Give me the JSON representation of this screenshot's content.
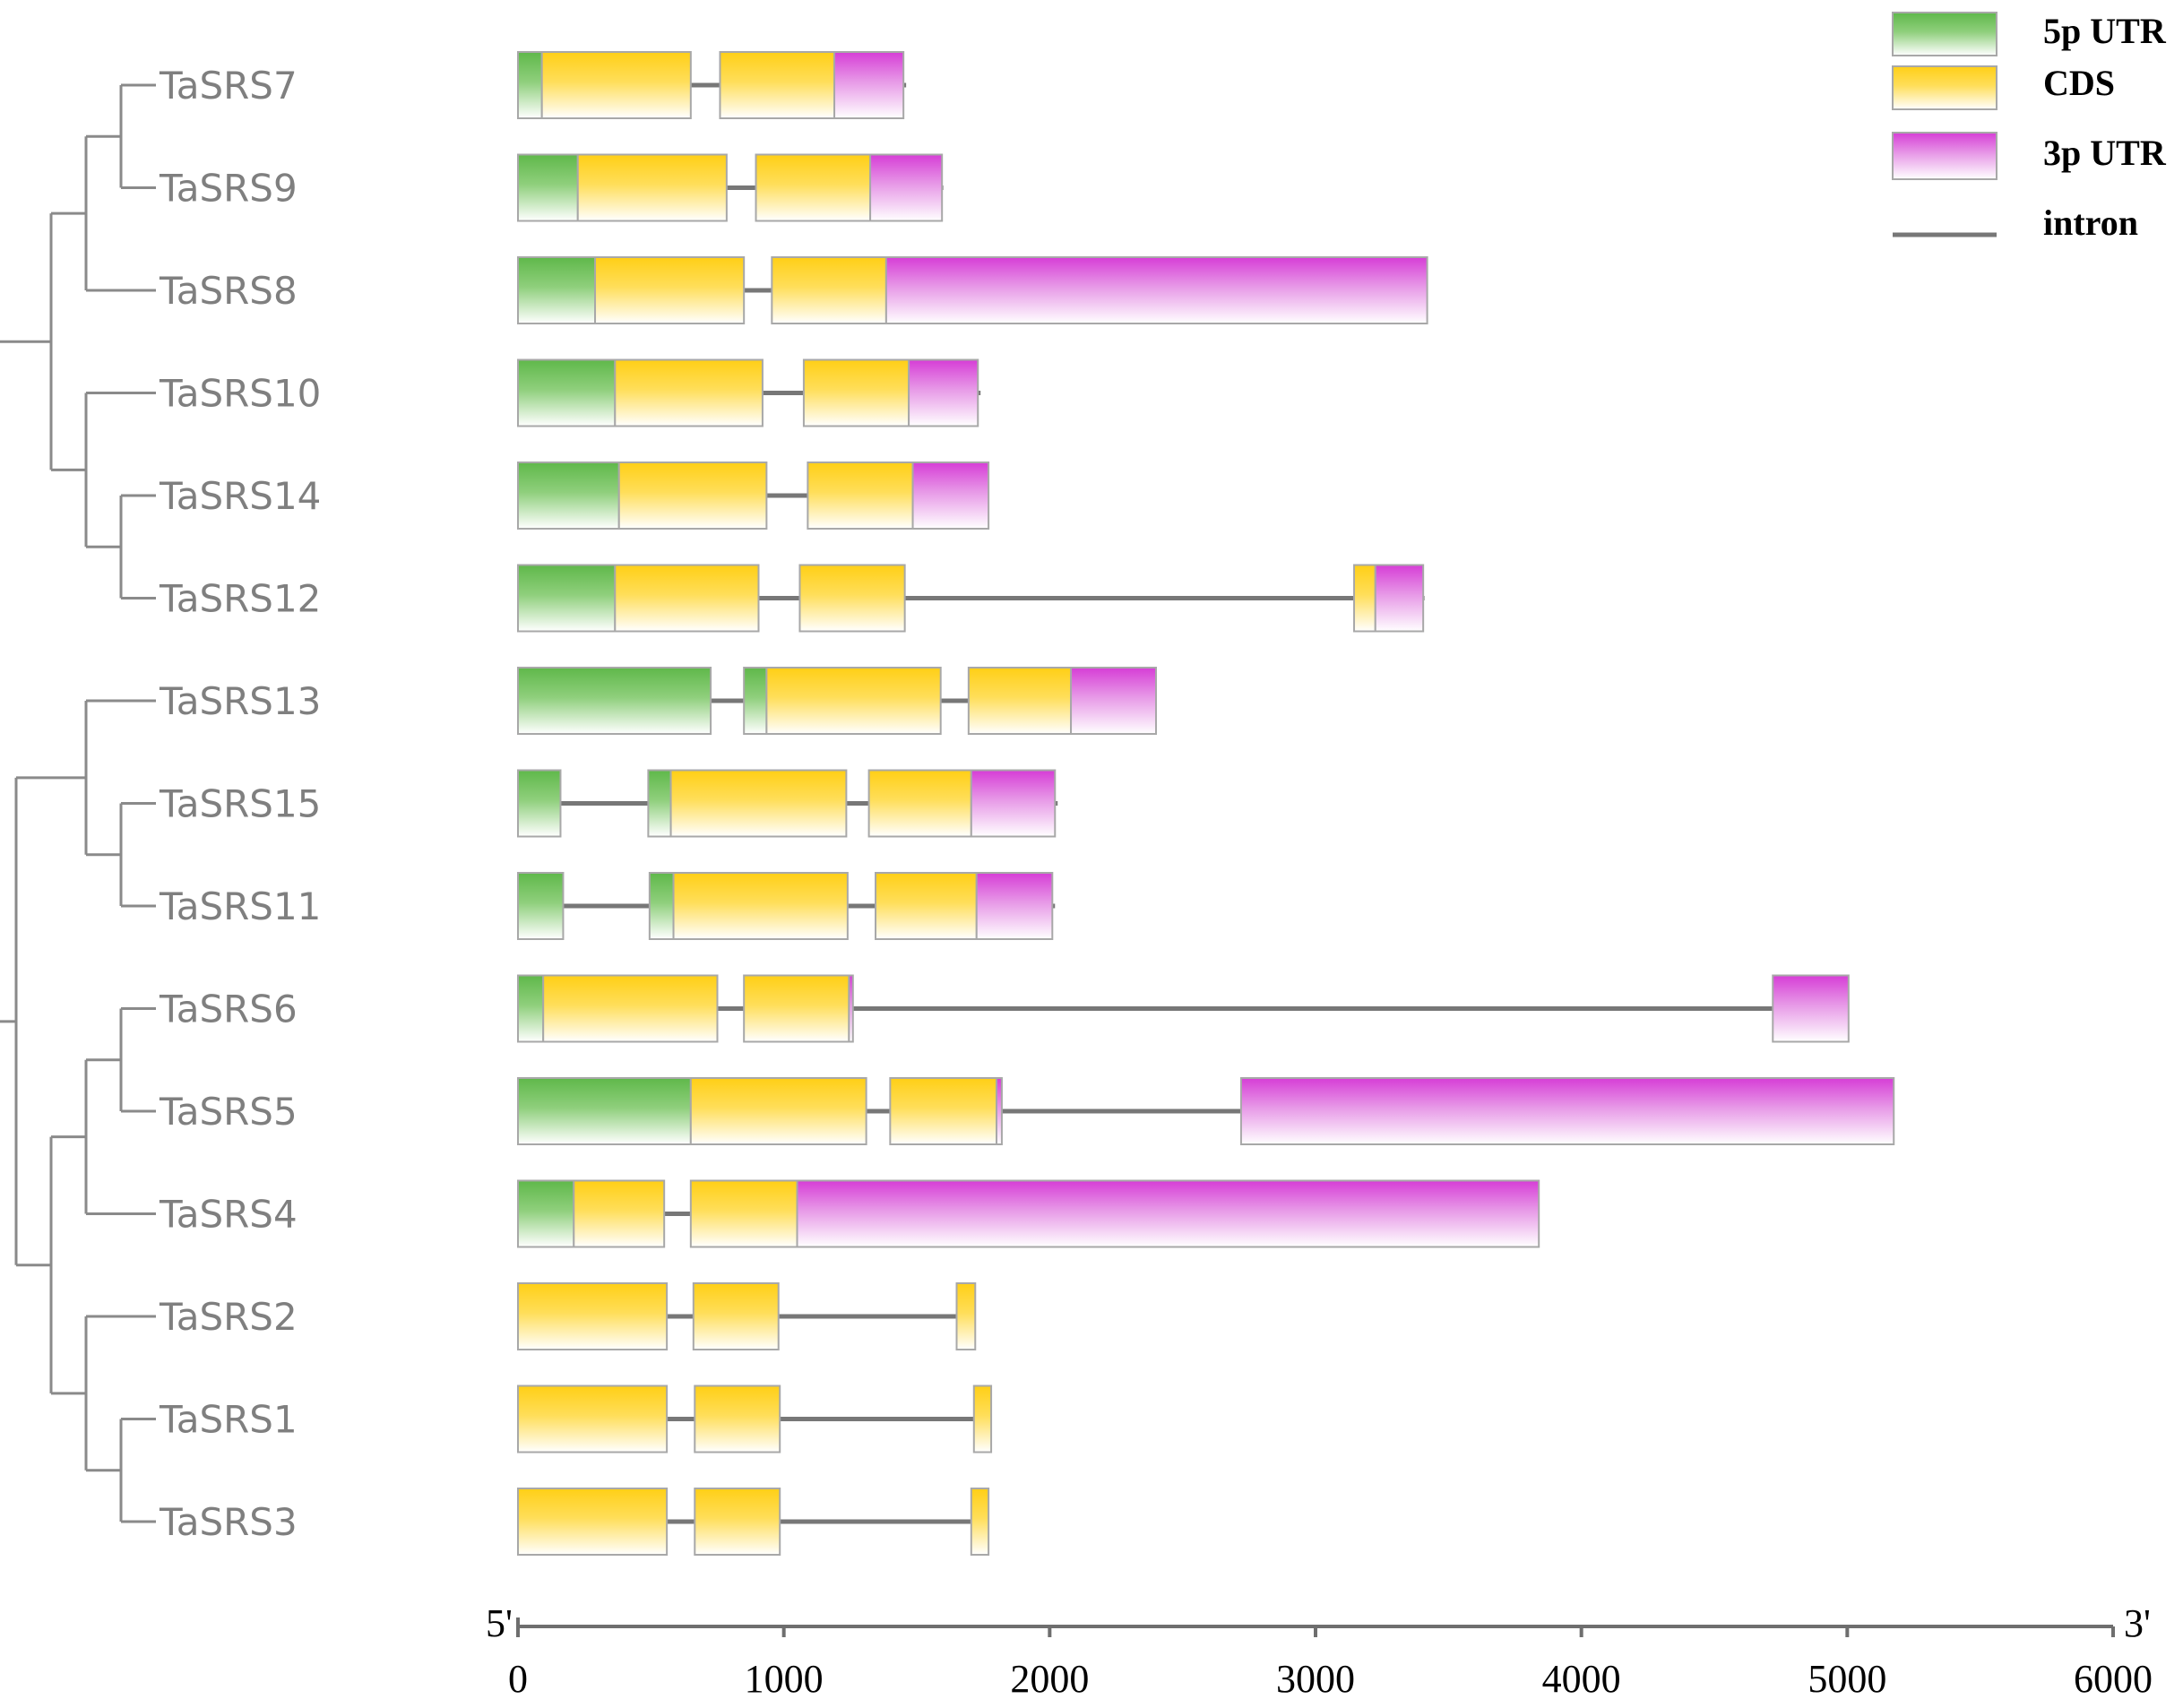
{
  "legend": {
    "items": [
      {
        "key": "utr5",
        "label": "5p UTR",
        "color": "#5fb84a"
      },
      {
        "key": "cds",
        "label": "CDS",
        "color": "#ffce1c"
      },
      {
        "key": "utr3",
        "label": "3p UTR",
        "color": "#d63dd6"
      },
      {
        "key": "intron",
        "label": "intron",
        "color": "#777777"
      }
    ]
  },
  "axis": {
    "min": 0,
    "max": 6000,
    "ticks": [
      "0",
      "1000",
      "2000",
      "3000",
      "4000",
      "5000",
      "6000"
    ],
    "tick_values": [
      0,
      1000,
      2000,
      3000,
      4000,
      5000,
      6000
    ],
    "start_label": "5'",
    "end_label": "3'"
  },
  "tree": {
    "root": {
      "children": [
        {
          "children": [
            {
              "children": [
                {
                  "children": [
                    {
                      "leaf": 0
                    },
                    {
                      "leaf": 1
                    }
                  ]
                },
                {
                  "leaf": 2
                }
              ]
            },
            {
              "children": [
                {
                  "leaf": 3
                },
                {
                  "children": [
                    {
                      "leaf": 4
                    },
                    {
                      "leaf": 5
                    }
                  ]
                }
              ]
            }
          ]
        },
        {
          "children": [
            {
              "children": [
                {
                  "leaf": 6
                },
                {
                  "children": [
                    {
                      "leaf": 7
                    },
                    {
                      "leaf": 8
                    }
                  ]
                }
              ]
            },
            {
              "children": [
                {
                  "children": [
                    {
                      "children": [
                        {
                          "leaf": 9
                        },
                        {
                          "leaf": 10
                        }
                      ]
                    },
                    {
                      "leaf": 11
                    }
                  ]
                },
                {
                  "children": [
                    {
                      "leaf": 12
                    },
                    {
                      "children": [
                        {
                          "leaf": 13
                        },
                        {
                          "leaf": 14
                        }
                      ]
                    }
                  ]
                }
              ]
            }
          ]
        }
      ]
    }
  },
  "genes": [
    {
      "name": "TaSRS7",
      "length": 1460,
      "features": [
        {
          "type": "utr5",
          "start": 0,
          "end": 90
        },
        {
          "type": "cds",
          "start": 90,
          "end": 650
        },
        {
          "type": "cds",
          "start": 760,
          "end": 1190
        },
        {
          "type": "utr3",
          "start": 1190,
          "end": 1450
        }
      ]
    },
    {
      "name": "TaSRS9",
      "length": 1600,
      "features": [
        {
          "type": "utr5",
          "start": 0,
          "end": 225
        },
        {
          "type": "cds",
          "start": 225,
          "end": 785
        },
        {
          "type": "cds",
          "start": 895,
          "end": 1325
        },
        {
          "type": "utr3",
          "start": 1325,
          "end": 1595
        }
      ]
    },
    {
      "name": "TaSRS8",
      "length": 3420,
      "features": [
        {
          "type": "utr5",
          "start": 0,
          "end": 290
        },
        {
          "type": "cds",
          "start": 290,
          "end": 850
        },
        {
          "type": "cds",
          "start": 955,
          "end": 1385
        },
        {
          "type": "utr3",
          "start": 1385,
          "end": 3420
        }
      ]
    },
    {
      "name": "TaSRS10",
      "length": 1740,
      "features": [
        {
          "type": "utr5",
          "start": 0,
          "end": 365
        },
        {
          "type": "cds",
          "start": 365,
          "end": 920
        },
        {
          "type": "cds",
          "start": 1075,
          "end": 1470
        },
        {
          "type": "utr3",
          "start": 1470,
          "end": 1730
        }
      ]
    },
    {
      "name": "TaSRS14",
      "length": 1770,
      "features": [
        {
          "type": "utr5",
          "start": 0,
          "end": 380
        },
        {
          "type": "cds",
          "start": 380,
          "end": 935
        },
        {
          "type": "cds",
          "start": 1090,
          "end": 1485
        },
        {
          "type": "utr3",
          "start": 1485,
          "end": 1770
        }
      ]
    },
    {
      "name": "TaSRS12",
      "length": 3410,
      "features": [
        {
          "type": "utr5",
          "start": 0,
          "end": 365
        },
        {
          "type": "cds",
          "start": 365,
          "end": 905
        },
        {
          "type": "cds",
          "start": 1060,
          "end": 1455
        },
        {
          "type": "cds",
          "start": 3145,
          "end": 3225
        },
        {
          "type": "utr3",
          "start": 3225,
          "end": 3405
        }
      ]
    },
    {
      "name": "TaSRS13",
      "length": 2400,
      "features": [
        {
          "type": "utr5",
          "start": 0,
          "end": 725
        },
        {
          "type": "utr5",
          "start": 850,
          "end": 935
        },
        {
          "type": "cds",
          "start": 935,
          "end": 1590
        },
        {
          "type": "cds",
          "start": 1695,
          "end": 2080
        },
        {
          "type": "utr3",
          "start": 2080,
          "end": 2400
        }
      ]
    },
    {
      "name": "TaSRS15",
      "length": 2030,
      "features": [
        {
          "type": "utr5",
          "start": 0,
          "end": 160
        },
        {
          "type": "utr5",
          "start": 490,
          "end": 575
        },
        {
          "type": "cds",
          "start": 575,
          "end": 1235
        },
        {
          "type": "cds",
          "start": 1320,
          "end": 1705
        },
        {
          "type": "utr3",
          "start": 1705,
          "end": 2020
        }
      ]
    },
    {
      "name": "TaSRS11",
      "length": 2020,
      "features": [
        {
          "type": "utr5",
          "start": 0,
          "end": 170
        },
        {
          "type": "utr5",
          "start": 495,
          "end": 585
        },
        {
          "type": "cds",
          "start": 585,
          "end": 1240
        },
        {
          "type": "cds",
          "start": 1345,
          "end": 1725
        },
        {
          "type": "utr3",
          "start": 1725,
          "end": 2010
        }
      ]
    },
    {
      "name": "TaSRS6",
      "length": 5005,
      "features": [
        {
          "type": "utr5",
          "start": 0,
          "end": 95
        },
        {
          "type": "cds",
          "start": 95,
          "end": 750
        },
        {
          "type": "cds",
          "start": 850,
          "end": 1245
        },
        {
          "type": "utr3",
          "start": 1245,
          "end": 1260
        },
        {
          "type": "utr3",
          "start": 4720,
          "end": 5005
        }
      ]
    },
    {
      "name": "TaSRS5",
      "length": 5175,
      "features": [
        {
          "type": "utr5",
          "start": 0,
          "end": 650
        },
        {
          "type": "cds",
          "start": 650,
          "end": 1310
        },
        {
          "type": "cds",
          "start": 1400,
          "end": 1800
        },
        {
          "type": "utr3",
          "start": 1800,
          "end": 1820
        },
        {
          "type": "utr3",
          "start": 2720,
          "end": 5175
        }
      ]
    },
    {
      "name": "TaSRS4",
      "length": 3840,
      "features": [
        {
          "type": "utr5",
          "start": 0,
          "end": 210
        },
        {
          "type": "cds",
          "start": 210,
          "end": 550
        },
        {
          "type": "cds",
          "start": 650,
          "end": 1050
        },
        {
          "type": "utr3",
          "start": 1050,
          "end": 3840
        }
      ]
    },
    {
      "name": "TaSRS2",
      "length": 1720,
      "features": [
        {
          "type": "cds",
          "start": 0,
          "end": 560
        },
        {
          "type": "cds",
          "start": 660,
          "end": 980
        },
        {
          "type": "cds",
          "start": 1650,
          "end": 1720
        }
      ]
    },
    {
      "name": "TaSRS1",
      "length": 1780,
      "features": [
        {
          "type": "cds",
          "start": 0,
          "end": 560
        },
        {
          "type": "cds",
          "start": 665,
          "end": 985
        },
        {
          "type": "cds",
          "start": 1715,
          "end": 1780
        }
      ]
    },
    {
      "name": "TaSRS3",
      "length": 1770,
      "features": [
        {
          "type": "cds",
          "start": 0,
          "end": 560
        },
        {
          "type": "cds",
          "start": 665,
          "end": 985
        },
        {
          "type": "cds",
          "start": 1705,
          "end": 1770
        }
      ]
    }
  ]
}
